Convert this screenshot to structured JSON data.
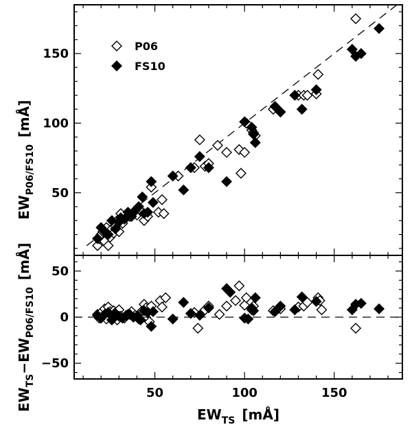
{
  "chart_data": [
    {
      "type": "scatter",
      "panel": "top",
      "xlabel_main": "EW",
      "xlabel_sub": "TS",
      "xlabel_unit": "[mÅ]",
      "ylabel_main": "EW",
      "ylabel_sub": "P06/FS10",
      "ylabel_unit": "[mÅ]",
      "xlim": [
        5,
        188
      ],
      "ylim": [
        5,
        185
      ],
      "yticks": [
        50,
        100,
        150
      ],
      "reference_line": "one-to-one (dashed)",
      "legend": {
        "position": "top-left",
        "entries": [
          {
            "name": "P06",
            "marker": "open-diamond"
          },
          {
            "name": "FS10",
            "marker": "filled-diamond"
          }
        ]
      },
      "series": [
        {
          "name": "P06",
          "marker": "open-diamond",
          "points": [
            [
              18,
              12
            ],
            [
              19,
              17
            ],
            [
              20,
              20
            ],
            [
              21,
              22
            ],
            [
              22,
              15
            ],
            [
              23,
              25
            ],
            [
              24,
              12
            ],
            [
              25,
              18
            ],
            [
              26,
              24
            ],
            [
              27,
              21
            ],
            [
              28,
              26
            ],
            [
              29,
              30
            ],
            [
              30,
              22
            ],
            [
              31,
              35
            ],
            [
              32,
              28
            ],
            [
              34,
              32
            ],
            [
              36,
              33
            ],
            [
              38,
              36
            ],
            [
              40,
              34
            ],
            [
              42,
              37
            ],
            [
              44,
              30
            ],
            [
              46,
              33
            ],
            [
              48,
              54
            ],
            [
              52,
              36
            ],
            [
              54,
              45
            ],
            [
              55,
              35
            ],
            [
              63,
              62
            ],
            [
              72,
              68
            ],
            [
              75,
              88
            ],
            [
              78,
              69
            ],
            [
              80,
              71
            ],
            [
              85,
              84
            ],
            [
              90,
              79
            ],
            [
              97,
              81
            ],
            [
              98,
              64
            ],
            [
              100,
              79
            ],
            [
              101,
              100
            ],
            [
              104,
              95
            ],
            [
              105,
              93
            ],
            [
              106,
              91
            ],
            [
              116,
              110
            ],
            [
              120,
              108
            ],
            [
              130,
              120
            ],
            [
              133,
              120
            ],
            [
              135,
              120
            ],
            [
              140,
              121
            ],
            [
              141,
              135
            ],
            [
              162,
              175
            ]
          ]
        },
        {
          "name": "FS10",
          "marker": "filled-diamond",
          "points": [
            [
              18,
              17
            ],
            [
              20,
              25
            ],
            [
              22,
              22
            ],
            [
              24,
              20
            ],
            [
              26,
              30
            ],
            [
              28,
              24
            ],
            [
              30,
              29
            ],
            [
              31,
              32
            ],
            [
              33,
              31
            ],
            [
              35,
              36
            ],
            [
              37,
              33
            ],
            [
              39,
              37
            ],
            [
              41,
              40
            ],
            [
              43,
              47
            ],
            [
              44,
              35
            ],
            [
              46,
              36
            ],
            [
              48,
              58
            ],
            [
              49,
              43
            ],
            [
              60,
              62
            ],
            [
              66,
              52
            ],
            [
              70,
              68
            ],
            [
              75,
              76
            ],
            [
              80,
              68
            ],
            [
              90,
              58
            ],
            [
              100,
              101
            ],
            [
              104,
              97
            ],
            [
              105,
              92
            ],
            [
              106,
              86
            ],
            [
              117,
              112
            ],
            [
              120,
              108
            ],
            [
              128,
              120
            ],
            [
              132,
              110
            ],
            [
              140,
              124
            ],
            [
              160,
              153
            ],
            [
              162,
              148
            ],
            [
              165,
              150
            ],
            [
              175,
              168
            ]
          ]
        }
      ]
    },
    {
      "type": "scatter",
      "panel": "bottom",
      "xlabel_main": "EW",
      "xlabel_sub": "TS",
      "xlabel_unit": "[mÅ]",
      "ylabel_main": "EW",
      "ylabel_sub1": "TS",
      "ylabel_mid": "−EW",
      "ylabel_sub2": "P06/FS10",
      "ylabel_unit": "[mÅ]",
      "xlim": [
        5,
        188
      ],
      "ylim": [
        -67,
        67
      ],
      "xticks": [
        50,
        100,
        150
      ],
      "yticks": [
        -50,
        0,
        50
      ],
      "reference_line": "zero (dashed)",
      "series": [
        {
          "name": "P06",
          "marker": "open-diamond",
          "points": [
            [
              18,
              3
            ],
            [
              19,
              -1
            ],
            [
              20,
              5
            ],
            [
              21,
              1
            ],
            [
              22,
              9
            ],
            [
              23,
              -2
            ],
            [
              24,
              11
            ],
            [
              25,
              6
            ],
            [
              26,
              2
            ],
            [
              27,
              7
            ],
            [
              28,
              5
            ],
            [
              29,
              -3
            ],
            [
              30,
              8
            ],
            [
              31,
              1
            ],
            [
              33,
              -1
            ],
            [
              35,
              3
            ],
            [
              37,
              6
            ],
            [
              39,
              2
            ],
            [
              41,
              -2
            ],
            [
              43,
              7
            ],
            [
              44,
              14
            ],
            [
              45,
              10
            ],
            [
              47,
              -5
            ],
            [
              48,
              12
            ],
            [
              53,
              18
            ],
            [
              54,
              11
            ],
            [
              56,
              21
            ],
            [
              72,
              5
            ],
            [
              74,
              -12
            ],
            [
              78,
              8
            ],
            [
              80,
              12
            ],
            [
              86,
              3
            ],
            [
              90,
              12
            ],
            [
              95,
              18
            ],
            [
              97,
              34
            ],
            [
              100,
              13
            ],
            [
              101,
              21
            ],
            [
              104,
              8
            ],
            [
              105,
              12
            ],
            [
              116,
              7
            ],
            [
              120,
              9
            ],
            [
              130,
              11
            ],
            [
              133,
              12
            ],
            [
              135,
              16
            ],
            [
              141,
              21
            ],
            [
              142,
              18
            ],
            [
              143,
              8
            ],
            [
              162,
              -12
            ]
          ]
        },
        {
          "name": "FS10",
          "marker": "filled-diamond",
          "points": [
            [
              18,
              2
            ],
            [
              20,
              -1
            ],
            [
              22,
              3
            ],
            [
              24,
              5
            ],
            [
              26,
              -3
            ],
            [
              28,
              4
            ],
            [
              30,
              1
            ],
            [
              32,
              -1
            ],
            [
              34,
              2
            ],
            [
              36,
              3
            ],
            [
              38,
              0
            ],
            [
              40,
              1
            ],
            [
              42,
              -3
            ],
            [
              44,
              7
            ],
            [
              46,
              5
            ],
            [
              48,
              -10
            ],
            [
              49,
              6
            ],
            [
              60,
              -2
            ],
            [
              66,
              16
            ],
            [
              70,
              4
            ],
            [
              75,
              2
            ],
            [
              80,
              10
            ],
            [
              90,
              31
            ],
            [
              92,
              27
            ],
            [
              100,
              -1
            ],
            [
              102,
              -2
            ],
            [
              104,
              10
            ],
            [
              105,
              7
            ],
            [
              106,
              21
            ],
            [
              117,
              6
            ],
            [
              120,
              12
            ],
            [
              128,
              8
            ],
            [
              132,
              22
            ],
            [
              140,
              17
            ],
            [
              160,
              8
            ],
            [
              162,
              14
            ],
            [
              165,
              15
            ],
            [
              175,
              9
            ]
          ]
        }
      ]
    }
  ]
}
